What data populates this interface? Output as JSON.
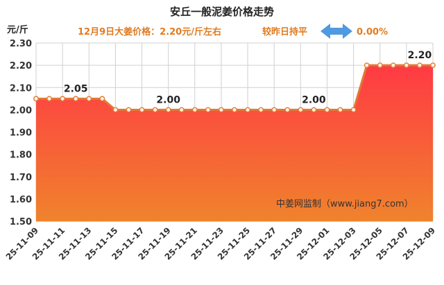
{
  "header": {
    "title": "安丘一般泥姜价格走势",
    "unit": "元/斤",
    "price_text": "12月9日大姜价格：2.20元/斤左右",
    "compare_text": "较昨日持平",
    "change_pct": "0.00%",
    "arrow_icon": "left-right-arrow-icon"
  },
  "watermark": "中姜网监制（www.jiang7.com）",
  "colors": {
    "line": "#e07a36",
    "marker_fill": "#fdf2e4",
    "area_top": "#ff3a44",
    "area_bottom": "#f0832c",
    "arrow": "#4f9ae0",
    "accent_text": "#e07b20",
    "grid": "#d0d0d0"
  },
  "chart_data": {
    "type": "area",
    "title": "安丘一般泥姜价格走势",
    "ylabel": "元/斤",
    "xlabel": "",
    "ylim": [
      1.5,
      2.3
    ],
    "yticks": [
      "1.50",
      "1.60",
      "1.70",
      "1.80",
      "1.90",
      "2.00",
      "2.10",
      "2.20",
      "2.30"
    ],
    "grid": true,
    "x": [
      "25-11-09",
      "25-11-10",
      "25-11-11",
      "25-11-12",
      "25-11-13",
      "25-11-14",
      "25-11-15",
      "25-11-16",
      "25-11-17",
      "25-11-18",
      "25-11-19",
      "25-11-20",
      "25-11-21",
      "25-11-22",
      "25-11-23",
      "25-11-24",
      "25-11-25",
      "25-11-26",
      "25-11-27",
      "25-11-28",
      "25-11-29",
      "25-11-30",
      "25-12-01",
      "25-12-02",
      "25-12-03",
      "25-12-04",
      "25-12-05",
      "25-12-06",
      "25-12-07",
      "25-12-08",
      "25-12-09"
    ],
    "x_tick_labels": [
      "25-11-09",
      "25-11-11",
      "25-11-13",
      "25-11-15",
      "25-11-17",
      "25-11-19",
      "25-11-21",
      "25-11-23",
      "25-11-25",
      "25-11-27",
      "25-11-29",
      "25-12-01",
      "25-12-03",
      "25-12-05",
      "25-12-07",
      "25-12-09"
    ],
    "series": [
      {
        "values": [
          2.05,
          2.05,
          2.05,
          2.05,
          2.05,
          2.05,
          2.0,
          2.0,
          2.0,
          2.0,
          2.0,
          2.0,
          2.0,
          2.0,
          2.0,
          2.0,
          2.0,
          2.0,
          2.0,
          2.0,
          2.0,
          2.0,
          2.0,
          2.0,
          2.0,
          2.2,
          2.2,
          2.2,
          2.2,
          2.2,
          2.2
        ]
      }
    ],
    "data_labels": [
      {
        "index": 3,
        "text": "2.05"
      },
      {
        "index": 10,
        "text": "2.00"
      },
      {
        "index": 21,
        "text": "2.00"
      },
      {
        "index": 29,
        "text": "2.20"
      }
    ]
  }
}
